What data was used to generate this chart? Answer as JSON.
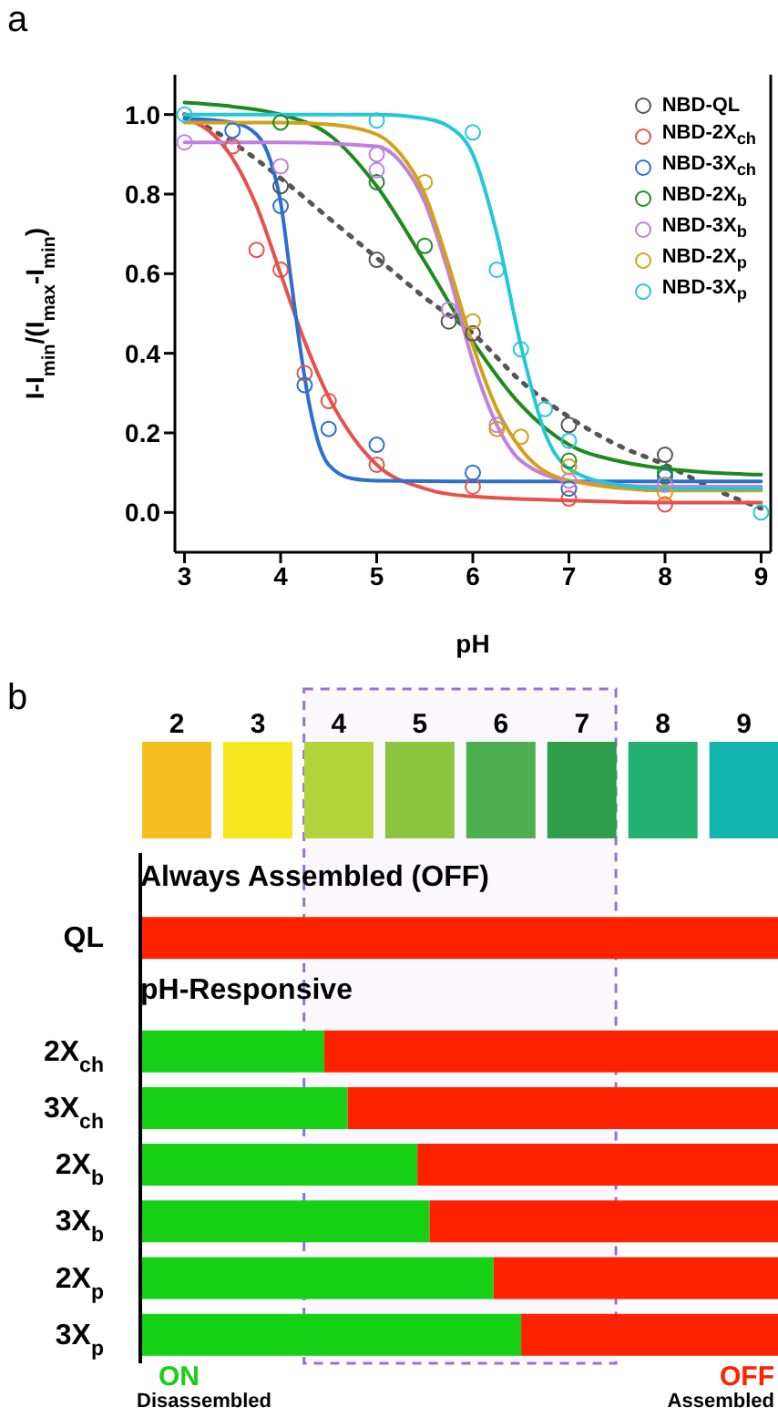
{
  "chart_data": [
    {
      "type": "scatter",
      "title": "a",
      "xlabel": "pH",
      "ylabel": "I-I$_{min}$/(I$_{max}$-I$_{min}$)",
      "xlim": [
        2.9,
        9.1
      ],
      "ylim": [
        -0.1,
        1.1
      ],
      "xticks": [
        3,
        4,
        5,
        6,
        7,
        8,
        9
      ],
      "yticks": [
        {
          "value": 0,
          "label": "0.0"
        },
        {
          "value": 0.2,
          "label": "0.2"
        },
        {
          "value": 0.4,
          "label": "0.4"
        },
        {
          "value": 0.6,
          "label": "0.6"
        },
        {
          "value": 0.8,
          "label": "0.8"
        },
        {
          "value": 1,
          "label": "1.0"
        }
      ],
      "legend": "top right",
      "series": [
        {
          "type": "scatter",
          "name": "NBD-QL",
          "color": "#555555",
          "marker": "circle",
          "x": [
            4,
            5,
            5.75,
            6,
            7,
            8
          ],
          "values": [
            0.82,
            0.635,
            0.48,
            0.45,
            0.22,
            0.145
          ]
        },
        {
          "type": "scatter",
          "name": "NBD-2X$_{ch}$",
          "color": "#e8504a",
          "marker": "circle",
          "x": [
            3.5,
            3.75,
            4,
            4.25,
            4.5,
            5,
            6,
            7,
            8
          ],
          "values": [
            0.92,
            0.66,
            0.61,
            0.35,
            0.28,
            0.12,
            0.065,
            0.035,
            0.02
          ]
        },
        {
          "type": "scatter",
          "name": "NBD-3X$_{ch}$",
          "color": "#2a6fd1",
          "marker": "circle",
          "x": [
            3.5,
            4,
            4.25,
            4.5,
            5,
            6,
            7,
            8
          ],
          "values": [
            0.96,
            0.77,
            0.32,
            0.21,
            0.17,
            0.1,
            0.06,
            0.09
          ]
        },
        {
          "type": "scatter",
          "name": "NBD-2X$_{b}$",
          "color": "#1e8a1e",
          "marker": "circle",
          "x": [
            4,
            5,
            5.5,
            7,
            8
          ],
          "values": [
            0.98,
            0.83,
            0.67,
            0.13,
            0.1
          ]
        },
        {
          "type": "scatter",
          "name": "NBD-3X$_{b}$",
          "color": "#c080e0",
          "marker": "circle",
          "x": [
            3,
            4,
            5,
            5,
            5.75,
            6.25,
            7,
            8
          ],
          "values": [
            0.93,
            0.87,
            0.9,
            0.86,
            0.51,
            0.22,
            0.08,
            0.07
          ]
        },
        {
          "type": "scatter",
          "name": "NBD-2X$_{p}$",
          "color": "#d4a017",
          "marker": "circle",
          "x": [
            5.5,
            6,
            6.25,
            6.5,
            7,
            8
          ],
          "values": [
            0.83,
            0.48,
            0.21,
            0.19,
            0.115,
            0.05
          ]
        },
        {
          "type": "scatter",
          "name": "NBD-3X$_{p}$",
          "color": "#22c8d8",
          "marker": "circle",
          "x": [
            3,
            5,
            6,
            6.25,
            6.5,
            6.75,
            7,
            9
          ],
          "values": [
            1.0,
            0.985,
            0.955,
            0.61,
            0.41,
            0.26,
            0.18,
            0.0
          ]
        },
        {
          "type": "line",
          "color": "#555555",
          "marker": "none",
          "line_style": "dotted",
          "x": [
            3,
            3.5,
            4,
            4.5,
            5,
            5.5,
            6,
            6.5,
            7,
            7.5,
            8,
            8.5,
            9
          ],
          "values": [
            1.0,
            0.93,
            0.84,
            0.74,
            0.64,
            0.54,
            0.45,
            0.33,
            0.24,
            0.17,
            0.12,
            0.06,
            0.01
          ]
        },
        {
          "type": "line",
          "color": "#e8504a",
          "marker": "none",
          "line_style": "solid",
          "x": [
            3,
            3.25,
            3.5,
            3.75,
            4,
            4.25,
            4.5,
            4.75,
            5,
            5.5,
            6,
            7,
            8,
            9
          ],
          "values": [
            0.99,
            0.96,
            0.89,
            0.77,
            0.6,
            0.43,
            0.29,
            0.19,
            0.12,
            0.06,
            0.04,
            0.03,
            0.025,
            0.025
          ]
        },
        {
          "type": "line",
          "color": "#2a6fd1",
          "marker": "none",
          "line_style": "solid",
          "x": [
            3,
            3.5,
            3.75,
            3.9,
            4,
            4.1,
            4.2,
            4.3,
            4.4,
            4.5,
            4.75,
            5,
            6,
            9
          ],
          "values": [
            0.99,
            0.98,
            0.95,
            0.88,
            0.78,
            0.6,
            0.42,
            0.27,
            0.17,
            0.12,
            0.085,
            0.08,
            0.078,
            0.078
          ]
        },
        {
          "type": "line",
          "color": "#1e8a1e",
          "marker": "none",
          "line_style": "solid",
          "x": [
            3,
            3.5,
            4,
            4.5,
            5,
            5.5,
            6,
            6.5,
            7,
            7.5,
            8,
            8.5,
            9
          ],
          "values": [
            1.03,
            1.02,
            1.0,
            0.95,
            0.82,
            0.63,
            0.43,
            0.27,
            0.17,
            0.13,
            0.11,
            0.1,
            0.095
          ]
        },
        {
          "type": "line",
          "color": "#c080e0",
          "marker": "none",
          "line_style": "solid",
          "x": [
            3,
            4,
            5,
            5.25,
            5.5,
            5.75,
            6,
            6.25,
            6.5,
            7,
            8,
            9
          ],
          "values": [
            0.93,
            0.93,
            0.92,
            0.88,
            0.78,
            0.6,
            0.38,
            0.22,
            0.13,
            0.08,
            0.065,
            0.065
          ]
        },
        {
          "type": "line",
          "color": "#d4a017",
          "marker": "none",
          "line_style": "solid",
          "x": [
            3,
            4,
            4.5,
            5,
            5.25,
            5.5,
            5.75,
            6,
            6.25,
            6.5,
            7,
            8,
            9
          ],
          "values": [
            0.98,
            0.98,
            0.975,
            0.95,
            0.9,
            0.8,
            0.62,
            0.42,
            0.26,
            0.16,
            0.08,
            0.055,
            0.055
          ]
        },
        {
          "type": "line",
          "color": "#22c8d8",
          "marker": "none",
          "line_style": "solid",
          "x": [
            3,
            4,
            5,
            5.5,
            5.75,
            6,
            6.25,
            6.5,
            6.75,
            7,
            7.5,
            8,
            9
          ],
          "values": [
            1.0,
            1.0,
            1.0,
            0.99,
            0.97,
            0.9,
            0.7,
            0.42,
            0.2,
            0.11,
            0.07,
            0.06,
            0.06
          ]
        }
      ]
    },
    {
      "type": "bar",
      "title": "b",
      "orientation": "horizontal",
      "categories": [
        null,
        "QL",
        null,
        "2X$_{ch}$",
        "3X$_{ch}$",
        "2X$_{b}$",
        "3X$_{b}$",
        "2X$_{p}$",
        "3X$_{p}$"
      ],
      "xlim": [
        1.55,
        9.42
      ],
      "xticks": [
        2,
        3,
        4,
        5,
        6,
        7,
        8,
        9
      ],
      "annotations": [
        "Always Assembled (OFF)",
        "pH-Responsive",
        "Disassembled",
        "Assembled"
      ],
      "bands": [
        {
          "axis": "x",
          "from": 3.57,
          "to": 7.42,
          "color": "#9b6fd6"
        }
      ],
      "series": [
        {
          "name": "ON",
          "color": "#16d016",
          "base": [
            null,
            null,
            null,
            1.55,
            1.55,
            1.55,
            1.55,
            1.55,
            1.55
          ],
          "values": [
            null,
            null,
            null,
            2.27,
            2.56,
            3.42,
            3.57,
            4.36,
            4.7
          ]
        },
        {
          "name": "OFF",
          "color": "#ff2200",
          "base": [
            null,
            1.55,
            null,
            3.82,
            4.11,
            4.97,
            5.12,
            5.91,
            6.25
          ],
          "values": [
            null,
            7.87,
            null,
            5.6,
            5.31,
            4.45,
            4.3,
            3.51,
            3.17
          ]
        }
      ]
    }
  ]
}
